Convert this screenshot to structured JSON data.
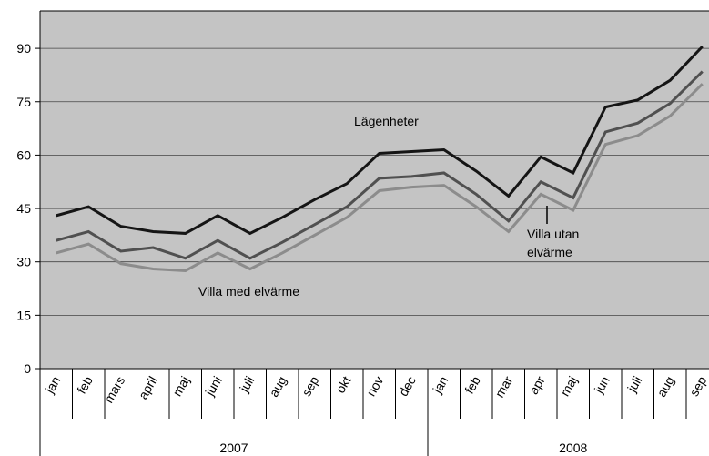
{
  "chart_data": {
    "type": "line",
    "categories": [
      "jan",
      "feb",
      "mars",
      "april",
      "maj",
      "juni",
      "juli",
      "aug",
      "sep",
      "okt",
      "nov",
      "dec",
      "jan",
      "feb",
      "mar",
      "apr",
      "maj",
      "jun",
      "juli",
      "aug",
      "sep"
    ],
    "x_groups": [
      {
        "label": "2007",
        "span": 12
      },
      {
        "label": "2008",
        "span": 9
      }
    ],
    "series": [
      {
        "name": "Lägenheter",
        "color": "#151515",
        "values": [
          43,
          45.5,
          40,
          38.5,
          38,
          43,
          38,
          42.5,
          47.5,
          52,
          60.5,
          61,
          61.5,
          55.5,
          48.5,
          59.5,
          55,
          73.5,
          75.5,
          81,
          90.5
        ]
      },
      {
        "name": "Villa utan elvärme",
        "color": "#505050",
        "values": [
          36,
          38.5,
          33,
          34,
          31,
          36,
          31,
          35.5,
          40.5,
          45.5,
          53.5,
          54,
          55,
          49,
          41.5,
          52.5,
          48,
          66.5,
          69,
          74.5,
          83.5
        ]
      },
      {
        "name": "Villa med elvärme",
        "color": "#8c8c8c",
        "values": [
          32.5,
          35,
          29.5,
          28,
          27.5,
          32.5,
          28,
          32.5,
          37.5,
          42.5,
          50,
          51,
          51.5,
          45.5,
          38.5,
          49,
          44.5,
          63,
          65.5,
          71,
          80
        ]
      }
    ],
    "ylim": [
      0,
      100
    ],
    "yticks": [
      0,
      15,
      30,
      45,
      60,
      75,
      90
    ],
    "grid": true
  }
}
